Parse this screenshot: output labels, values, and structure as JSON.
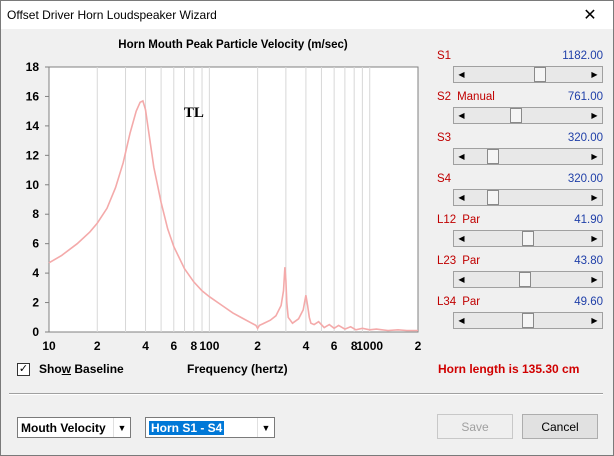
{
  "window": {
    "title": "Offset Driver Horn Loudspeaker Wizard",
    "close_glyph": "✕"
  },
  "chart_data": {
    "type": "line",
    "title": "Horn Mouth Peak Particle Velocity (m/sec)",
    "xlabel": "Frequency (hertz)",
    "ylabel": "",
    "x_scale": "log",
    "xlim": [
      10,
      2000
    ],
    "ylim": [
      0,
      18
    ],
    "y_ticks": [
      "0",
      "2",
      "4",
      "6",
      "8",
      "10",
      "12",
      "14",
      "16",
      "18"
    ],
    "x_tick_labels": [
      {
        "x": 10,
        "label": "10"
      },
      {
        "x": 20,
        "label": "2"
      },
      {
        "x": 40,
        "label": "4"
      },
      {
        "x": 60,
        "label": "6"
      },
      {
        "x": 80,
        "label": "8"
      },
      {
        "x": 100,
        "label": "100"
      },
      {
        "x": 200,
        "label": "2"
      },
      {
        "x": 400,
        "label": "4"
      },
      {
        "x": 600,
        "label": "6"
      },
      {
        "x": 800,
        "label": "8"
      },
      {
        "x": 1000,
        "label": "1000"
      },
      {
        "x": 2000,
        "label": "2"
      }
    ],
    "grid": true,
    "annotation": "TL",
    "line_color": "#f4aaaa",
    "series": [
      {
        "x": [
          10,
          12,
          15,
          18,
          20,
          23,
          26,
          29,
          32,
          35,
          37,
          38.5,
          40,
          42,
          45,
          50,
          55,
          60,
          70,
          80,
          90,
          100,
          120,
          140,
          160,
          180,
          195,
          200,
          205,
          215,
          240,
          260,
          280,
          290,
          296,
          300,
          304,
          310,
          330,
          360,
          385,
          400,
          410,
          420,
          430,
          450,
          480,
          520,
          560,
          600,
          640,
          700,
          760,
          820,
          900,
          1000,
          1100,
          1300,
          1500,
          1700,
          2000
        ],
        "y": [
          4.7,
          5.2,
          6.0,
          6.8,
          7.4,
          8.4,
          9.8,
          11.5,
          13.5,
          15.0,
          15.6,
          15.7,
          15.1,
          13.5,
          11.2,
          8.8,
          7.0,
          5.8,
          4.3,
          3.4,
          2.8,
          2.4,
          1.8,
          1.3,
          0.95,
          0.65,
          0.45,
          0.25,
          0.45,
          0.55,
          0.8,
          1.1,
          1.8,
          2.8,
          4.4,
          3.5,
          2.0,
          1.0,
          0.6,
          0.9,
          1.5,
          2.5,
          1.8,
          1.0,
          0.6,
          0.5,
          0.7,
          0.3,
          0.5,
          0.25,
          0.45,
          0.2,
          0.35,
          0.15,
          0.25,
          0.15,
          0.2,
          0.1,
          0.15,
          0.1,
          0.1
        ]
      }
    ]
  },
  "sliders": [
    {
      "label": "S1",
      "mode": "",
      "value": "1182.00",
      "fraction": 0.61
    },
    {
      "label": "S2",
      "mode": "Manual",
      "value": "761.00",
      "fraction": 0.39
    },
    {
      "label": "S3",
      "mode": "",
      "value": "320.00",
      "fraction": 0.17
    },
    {
      "label": "S4",
      "mode": "",
      "value": "320.00",
      "fraction": 0.17
    },
    {
      "label": "L12",
      "mode": "Par",
      "value": "41.90",
      "fraction": 0.5
    },
    {
      "label": "L23",
      "mode": "Par",
      "value": "43.80",
      "fraction": 0.47
    },
    {
      "label": "L34",
      "mode": "Par",
      "value": "49.60",
      "fraction": 0.5
    }
  ],
  "show_baseline": {
    "label": "Show Baseline",
    "checked": true,
    "check_glyph": "✓"
  },
  "horn_length": "Horn length is 135.30 cm",
  "quantity_select": {
    "value": "Mouth Velocity"
  },
  "range_select": {
    "value": "Horn S1 - S4"
  },
  "buttons": {
    "save": "Save",
    "cancel": "Cancel"
  }
}
